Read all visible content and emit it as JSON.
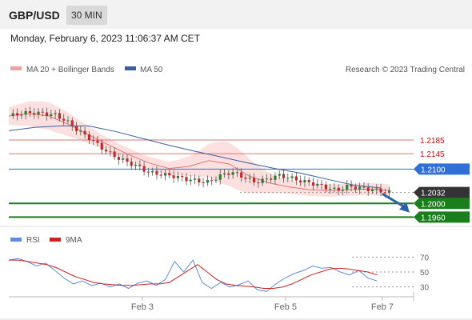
{
  "header": {
    "pair": "GBP/USD",
    "timeframe": "30 MIN",
    "datetime": "Monday, February 6, 2023 11:06:37 AM CET"
  },
  "legend": {
    "ma20": "MA 20 + Bollinger Bands",
    "ma50": "MA 50",
    "copyright": "Research © 2023 Trading Central",
    "rsi": "RSI",
    "rsi_ma": "9MA"
  },
  "colors": {
    "candle_up": "#2e7d32",
    "candle_down": "#c62828",
    "ma20": "#e57373",
    "ma50": "#3a5fa0",
    "bollinger": "#fbd5d5",
    "resistance": "#e57373",
    "pivot": "#2f6fd6",
    "support": "#1a7f1a",
    "last_price": "#333333",
    "rsi": "#5b8ee0",
    "rsi_ma": "#cc2222"
  },
  "chart_data": [
    {
      "type": "candlestick",
      "title": "GBP/USD",
      "timeframe": "30 MIN",
      "ylim": [
        1.194,
        1.236
      ],
      "x_ticks": [
        "Feb 3",
        "Feb 5",
        "Feb 7"
      ],
      "levels": [
        {
          "label": "1.2185",
          "value": 1.2185,
          "kind": "resistance"
        },
        {
          "label": "1.2145",
          "value": 1.2145,
          "kind": "resistance"
        },
        {
          "label": "1.2100",
          "value": 1.21,
          "kind": "pivot"
        },
        {
          "label": "1.2032",
          "value": 1.2032,
          "kind": "last"
        },
        {
          "label": "1.2000",
          "value": 1.2,
          "kind": "support"
        },
        {
          "label": "1.1960",
          "value": 1.196,
          "kind": "support"
        }
      ],
      "close_path": [
        1.2255,
        1.2262,
        1.2265,
        1.2262,
        1.2258,
        1.2238,
        1.221,
        1.2188,
        1.216,
        1.2138,
        1.2122,
        1.2108,
        1.209,
        1.2085,
        1.208,
        1.2072,
        1.2066,
        1.2062,
        1.208,
        1.2092,
        1.2078,
        1.2062,
        1.207,
        1.2082,
        1.2075,
        1.2065,
        1.2058,
        1.2048,
        1.2038,
        1.205,
        1.2045,
        1.204,
        1.2035,
        1.203
      ],
      "series": [
        {
          "name": "MA 20 + Bollinger Bands",
          "values": [
            1.2255,
            1.2262,
            1.2255,
            1.223,
            1.22,
            1.217,
            1.2142,
            1.2118,
            1.2102,
            1.2108,
            1.2125,
            1.2115,
            1.208,
            1.206,
            1.2048,
            1.204,
            1.2038,
            1.204,
            1.2042,
            1.2038
          ]
        },
        {
          "name": "MA 50",
          "values": [
            1.2212,
            1.2222,
            1.2226,
            1.2226,
            1.221,
            1.219,
            1.217,
            1.2152,
            1.2135,
            1.2118,
            1.2102,
            1.2088,
            1.207,
            1.2053,
            1.2045
          ]
        }
      ],
      "forecast_arrow": {
        "from": 1.2028,
        "to": 1.1985,
        "direction": "down"
      }
    },
    {
      "type": "line",
      "title": "RSI",
      "ylim": [
        20,
        80
      ],
      "y_ticks": [
        70,
        50,
        30
      ],
      "series": [
        {
          "name": "RSI",
          "values": [
            66,
            68,
            64,
            58,
            62,
            52,
            42,
            34,
            38,
            32,
            35,
            30,
            34,
            28,
            35,
            38,
            32,
            40,
            64,
            50,
            66,
            36,
            28,
            36,
            30,
            33,
            38,
            26,
            24,
            34,
            42,
            48,
            52,
            58,
            55,
            56,
            50,
            46,
            52,
            42,
            38
          ]
        },
        {
          "name": "9MA",
          "values": [
            66,
            66,
            64,
            62,
            60,
            56,
            50,
            44,
            40,
            36,
            34,
            33,
            32,
            32,
            33,
            34,
            34,
            36,
            44,
            52,
            60,
            50,
            40,
            34,
            32,
            31,
            30,
            28,
            28,
            30,
            34,
            40,
            46,
            50,
            54,
            55,
            54,
            52,
            50,
            46
          ]
        }
      ]
    }
  ]
}
